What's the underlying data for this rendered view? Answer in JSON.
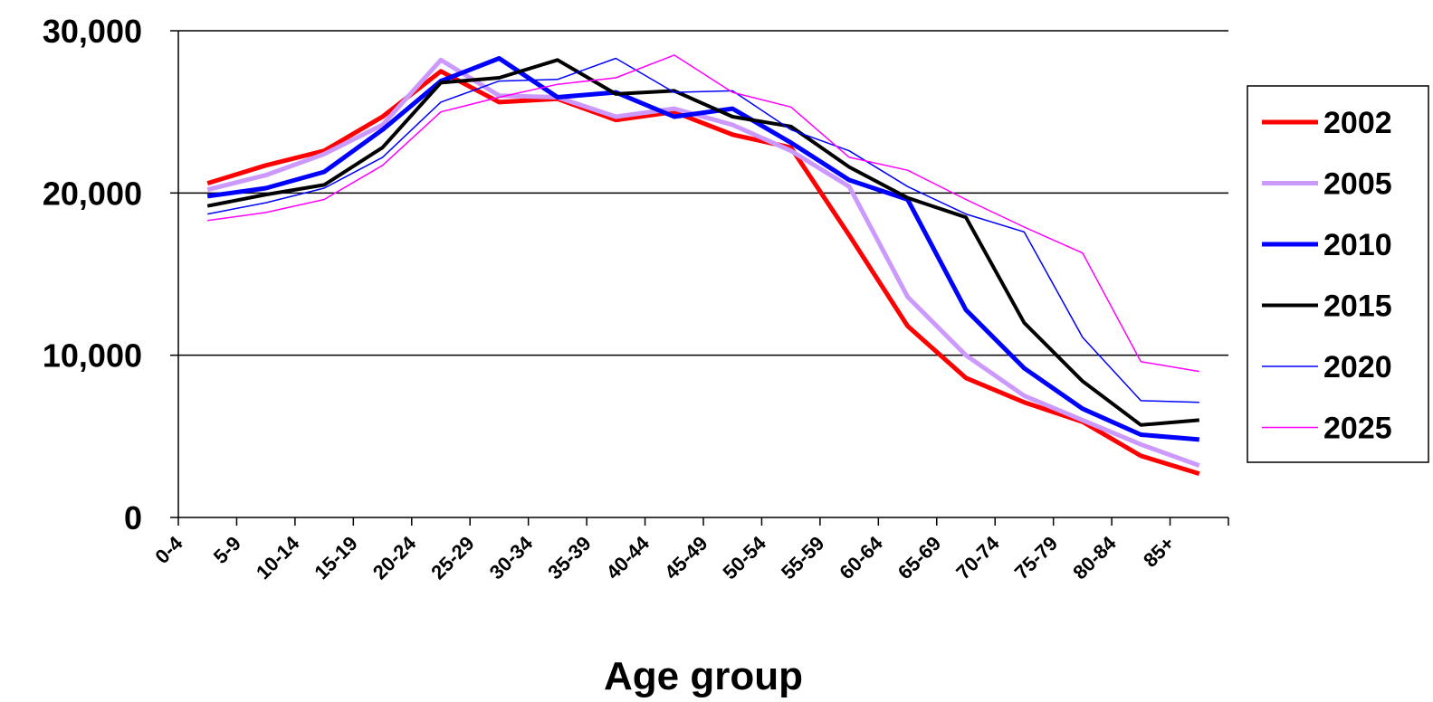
{
  "chart_data": {
    "type": "line",
    "title": "",
    "xlabel": "Age group",
    "ylabel": "",
    "ylim": [
      0,
      30000
    ],
    "yticks": [
      0,
      10000,
      20000,
      30000
    ],
    "ytick_labels": [
      "0",
      "10,000",
      "20,000",
      "30,000"
    ],
    "grid": "horizontal",
    "legend": "right",
    "categories": [
      "0-4",
      "5-9",
      "10-14",
      "15-19",
      "20-24",
      "25-29",
      "30-34",
      "35-39",
      "40-44",
      "45-49",
      "50-54",
      "55-59",
      "60-64",
      "65-69",
      "70-74",
      "75-79",
      "80-84",
      "85+"
    ],
    "series": [
      {
        "name": "2002",
        "color": "#ff0000",
        "values": [
          20600,
          21700,
          22600,
          24700,
          27500,
          25600,
          25800,
          24500,
          25000,
          23600,
          22800,
          17400,
          11800,
          8600,
          7100,
          5900,
          3800,
          2700
        ]
      },
      {
        "name": "2005",
        "color": "#cc99ff",
        "values": [
          20200,
          21100,
          22400,
          24200,
          28200,
          26000,
          25900,
          24700,
          25200,
          24200,
          22600,
          20400,
          13600,
          10000,
          7500,
          6000,
          4500,
          3200
        ]
      },
      {
        "name": "2010",
        "color": "#0000ff",
        "values": [
          19800,
          20300,
          21300,
          23900,
          26900,
          28300,
          25900,
          26200,
          24700,
          25200,
          23100,
          20800,
          19600,
          12800,
          9200,
          6700,
          5100,
          4800
        ]
      },
      {
        "name": "2015",
        "color": "#000000",
        "values": [
          19200,
          19900,
          20500,
          22800,
          26800,
          27100,
          28200,
          26100,
          26300,
          24700,
          24100,
          21600,
          19700,
          18500,
          12000,
          8400,
          5700,
          6000
        ]
      },
      {
        "name": "2020",
        "color": "#0000ff",
        "values": [
          18700,
          19400,
          20300,
          22200,
          25600,
          26900,
          27000,
          28300,
          26200,
          26300,
          23900,
          22600,
          20400,
          18700,
          17600,
          11100,
          7200,
          7100
        ]
      },
      {
        "name": "2025",
        "color": "#ff00ff",
        "values": [
          18300,
          18800,
          19600,
          21700,
          25000,
          25900,
          26700,
          27100,
          28500,
          26200,
          25300,
          22200,
          21400,
          19600,
          17900,
          16300,
          9600,
          9000
        ]
      }
    ]
  }
}
